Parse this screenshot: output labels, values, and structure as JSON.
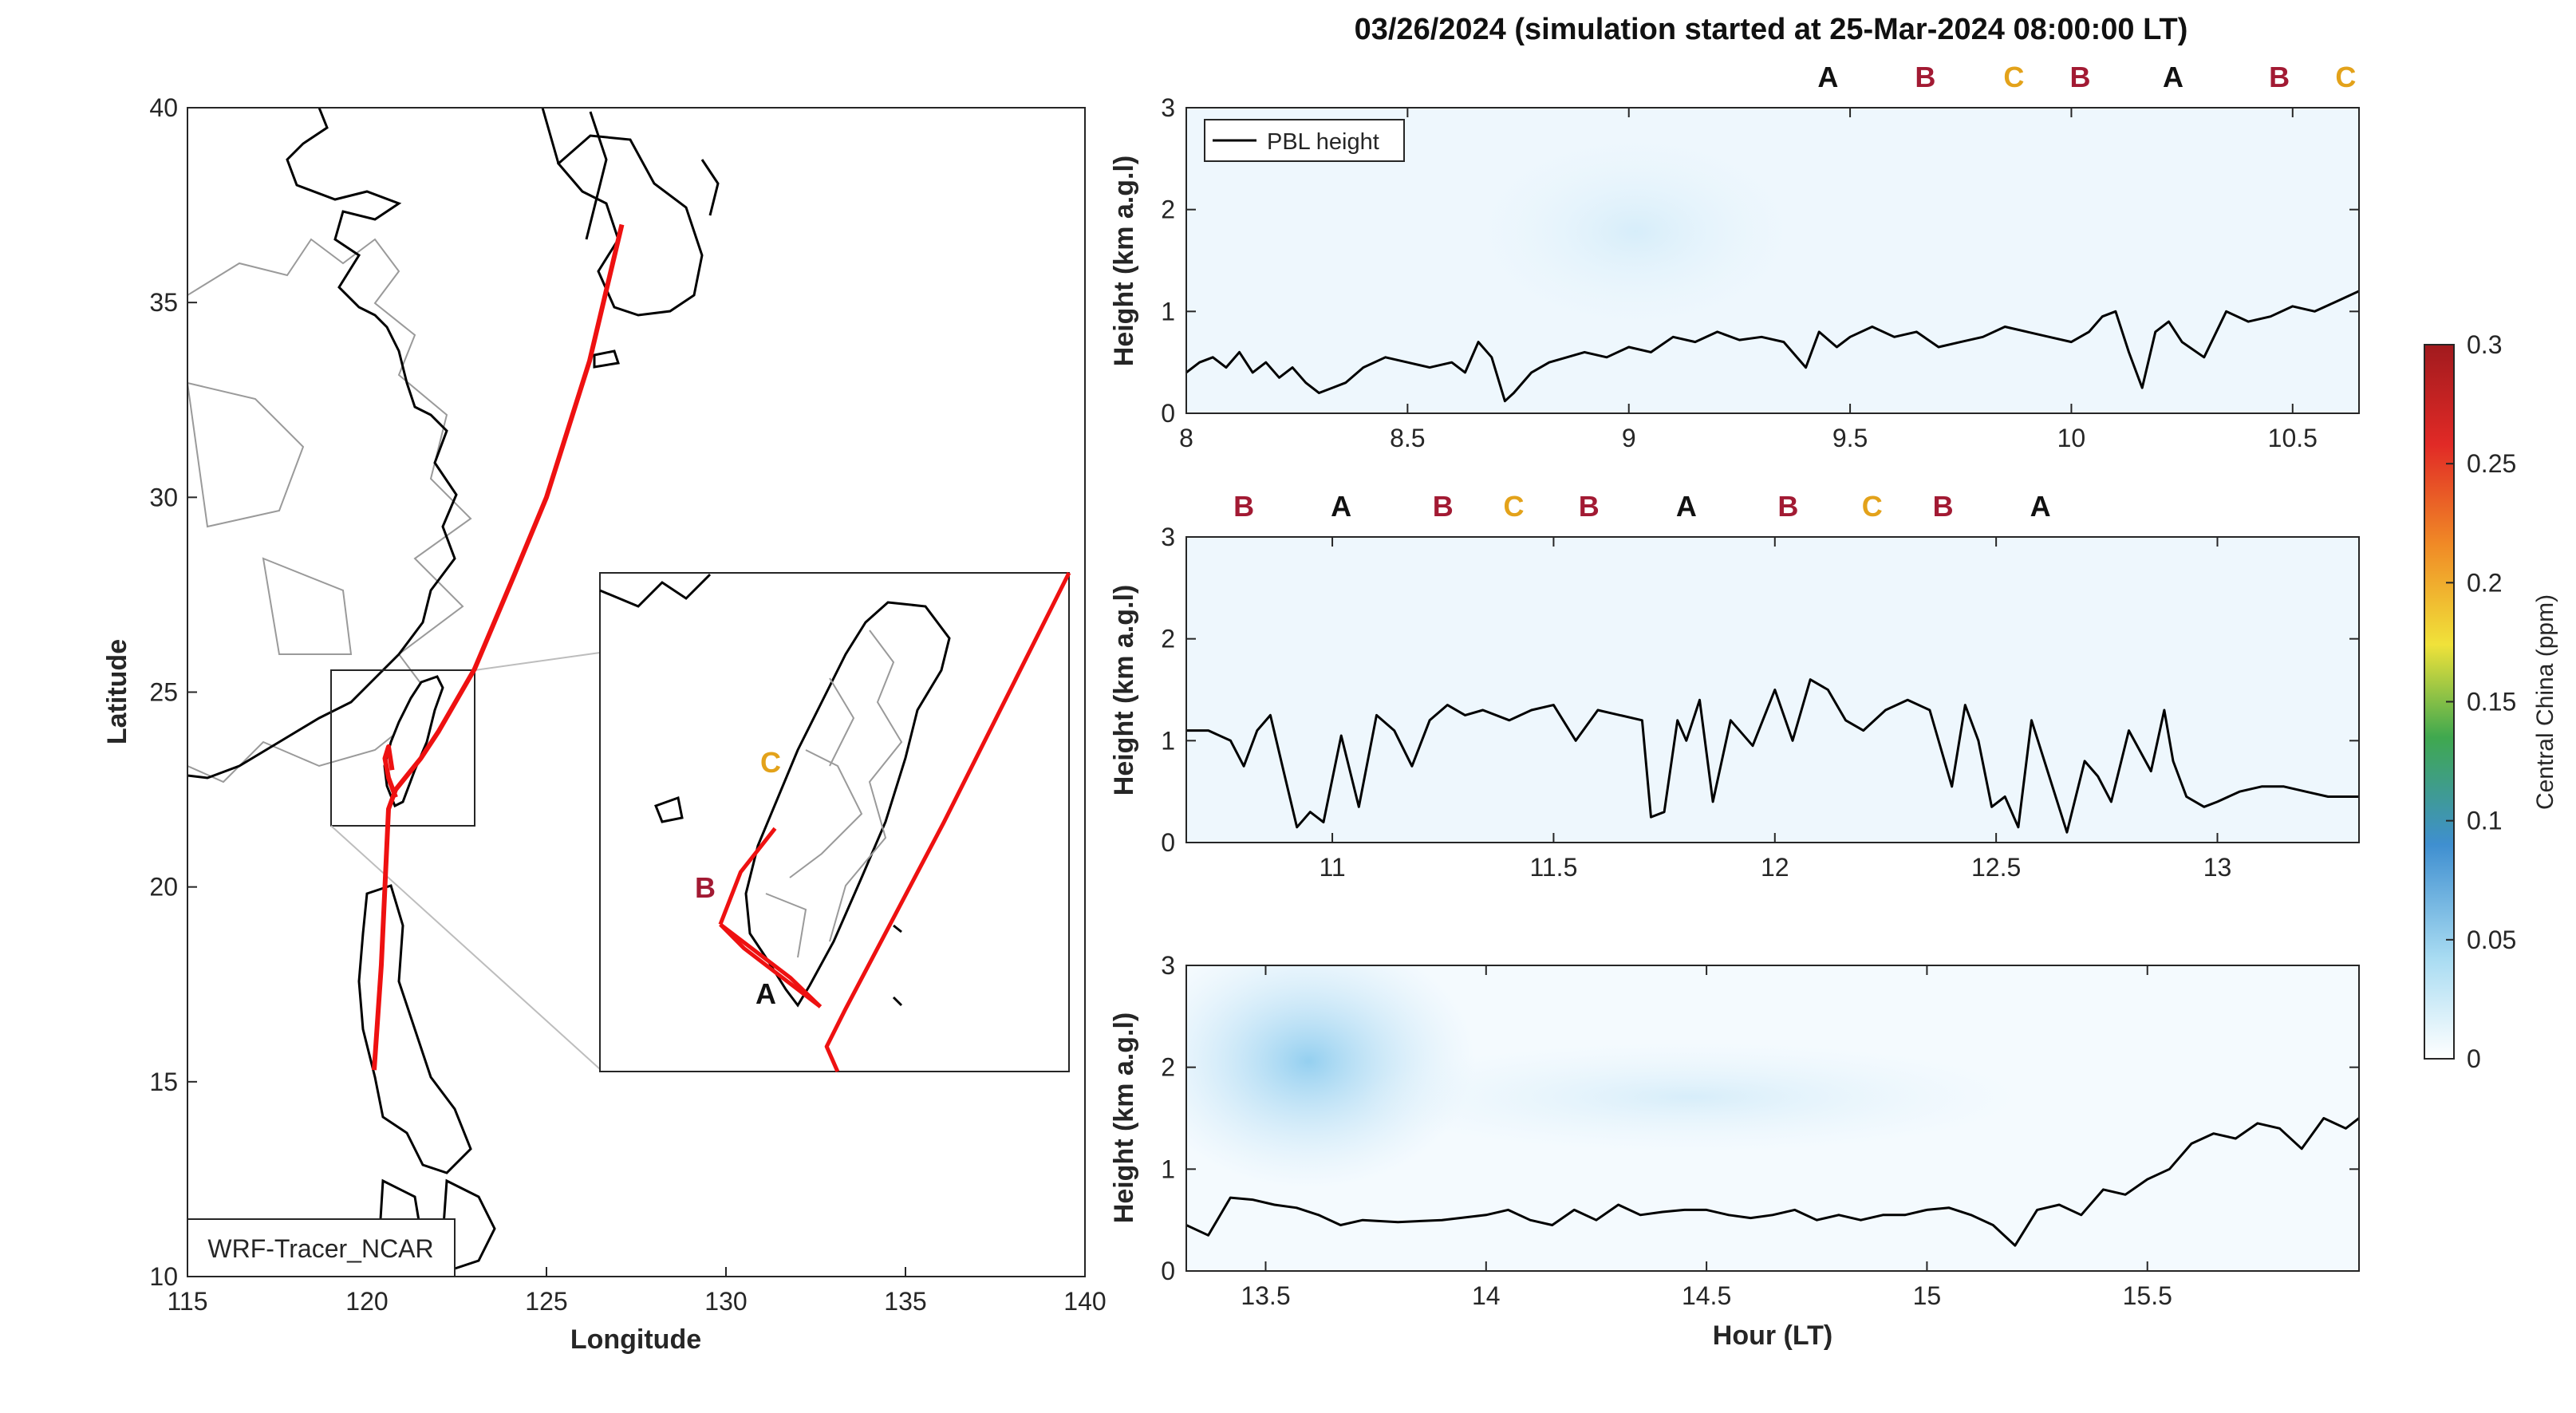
{
  "figure": {
    "title": "03/26/2024 (simulation started at 25-Mar-2024 08:00:00 LT)",
    "colors": {
      "A": "#111111",
      "B": "#a21a33",
      "C": "#e3a21a",
      "track": "#ee1111",
      "pbl": "#000000"
    }
  },
  "chart_data": [
    {
      "type": "line",
      "name": "map",
      "xlabel": "Longitude",
      "ylabel": "Latitude",
      "xlim": [
        115,
        140
      ],
      "ylim": [
        10,
        40
      ],
      "xticks": [
        "115",
        "120",
        "125",
        "130",
        "135",
        "140"
      ],
      "yticks": [
        "10",
        "15",
        "20",
        "25",
        "30",
        "35",
        "40"
      ],
      "annotation": "WRF-Tracer_NCAR",
      "track": {
        "lon": [
          127.1,
          126.2,
          125.0,
          124.1,
          123.0,
          122.0,
          121.5,
          120.8,
          120.6,
          120.4,
          120.2
        ],
        "lat": [
          37.0,
          33.5,
          30.0,
          28.0,
          25.6,
          24.0,
          23.3,
          22.5,
          22.0,
          18.0,
          15.3
        ]
      },
      "track_branch": {
        "lon": [
          120.8,
          120.6,
          120.5,
          120.6,
          120.7
        ],
        "lat": [
          22.3,
          22.8,
          23.3,
          23.6,
          23.0
        ]
      },
      "inset": {
        "lon_range": [
          119.3,
          122.3
        ],
        "lat_range": [
          21.5,
          25.5
        ],
        "markers": [
          "A",
          "B",
          "C"
        ],
        "track": {
          "lon": [
            122.3,
            121.5,
            120.87,
            120.75,
            120.82
          ],
          "lat": [
            25.5,
            23.5,
            22.0,
            21.7,
            21.5
          ]
        },
        "branches": [
          {
            "lon": [
              120.71,
              120.22,
              120.07
            ],
            "lat": [
              22.02,
              22.49,
              22.68
            ]
          },
          {
            "lon": [
              120.71,
              120.52,
              120.07
            ],
            "lat": [
              22.02,
              22.25,
              22.68
            ]
          },
          {
            "lon": [
              120.07,
              120.2,
              120.42
            ],
            "lat": [
              22.68,
              23.1,
              23.45
            ]
          }
        ]
      }
    },
    {
      "type": "line",
      "name": "panel-1",
      "ylabel": "Height (km a.g.l)",
      "xlim": [
        8,
        10.65
      ],
      "ylim": [
        0,
        3
      ],
      "xticks": [
        "8",
        "8.5",
        "9",
        "9.5",
        "10",
        "10.5"
      ],
      "yticks": [
        "0",
        "1",
        "2",
        "3"
      ],
      "legend": {
        "label": "PBL height",
        "placement": "top-left"
      },
      "markers": [
        {
          "label": "A",
          "x": 9.45
        },
        {
          "label": "B",
          "x": 9.67
        },
        {
          "label": "C",
          "x": 9.87
        },
        {
          "label": "B",
          "x": 10.02
        },
        {
          "label": "A",
          "x": 10.23
        },
        {
          "label": "B",
          "x": 10.47
        },
        {
          "label": "C",
          "x": 10.62
        }
      ],
      "series": [
        {
          "x": [
            8.0,
            8.03,
            8.06,
            8.09,
            8.12,
            8.15,
            8.18,
            8.21,
            8.24,
            8.27,
            8.3,
            8.33,
            8.36,
            8.4,
            8.45,
            8.5,
            8.55,
            8.6,
            8.63,
            8.66,
            8.69,
            8.72,
            8.74,
            8.78,
            8.82,
            8.86,
            8.9,
            8.95,
            9.0,
            9.05,
            9.1,
            9.15,
            9.2,
            9.25,
            9.3,
            9.35,
            9.4,
            9.43,
            9.47,
            9.5,
            9.55,
            9.6,
            9.65,
            9.7,
            9.75,
            9.8,
            9.85,
            9.9,
            9.95,
            10.0,
            10.04,
            10.07,
            10.1,
            10.13,
            10.16,
            10.19,
            10.22,
            10.25,
            10.3,
            10.35,
            10.4,
            10.45,
            10.5,
            10.55,
            10.6,
            10.65
          ],
          "y": [
            0.4,
            0.5,
            0.55,
            0.45,
            0.6,
            0.4,
            0.5,
            0.35,
            0.45,
            0.3,
            0.2,
            0.25,
            0.3,
            0.45,
            0.55,
            0.5,
            0.45,
            0.5,
            0.4,
            0.7,
            0.55,
            0.12,
            0.2,
            0.4,
            0.5,
            0.55,
            0.6,
            0.55,
            0.65,
            0.6,
            0.75,
            0.7,
            0.8,
            0.72,
            0.75,
            0.7,
            0.45,
            0.8,
            0.65,
            0.75,
            0.85,
            0.75,
            0.8,
            0.65,
            0.7,
            0.75,
            0.85,
            0.8,
            0.75,
            0.7,
            0.8,
            0.95,
            1.0,
            0.6,
            0.25,
            0.8,
            0.9,
            0.7,
            0.55,
            1.0,
            0.9,
            0.95,
            1.05,
            1.0,
            1.1,
            1.2
          ],
          "color": "#000000"
        }
      ]
    },
    {
      "type": "line",
      "name": "panel-2",
      "ylabel": "Height (km a.g.l)",
      "xlim": [
        10.67,
        13.32
      ],
      "ylim": [
        0,
        3
      ],
      "xticks": [
        "11",
        "11.5",
        "12",
        "12.5",
        "13"
      ],
      "yticks": [
        "0",
        "1",
        "2",
        "3"
      ],
      "markers": [
        {
          "label": "B",
          "x": 10.8
        },
        {
          "label": "A",
          "x": 11.02
        },
        {
          "label": "B",
          "x": 11.25
        },
        {
          "label": "C",
          "x": 11.41
        },
        {
          "label": "B",
          "x": 11.58
        },
        {
          "label": "A",
          "x": 11.8
        },
        {
          "label": "B",
          "x": 12.03
        },
        {
          "label": "C",
          "x": 12.22
        },
        {
          "label": "B",
          "x": 12.38
        },
        {
          "label": "A",
          "x": 12.6
        }
      ],
      "series": [
        {
          "x": [
            10.67,
            10.72,
            10.77,
            10.8,
            10.83,
            10.86,
            10.89,
            10.92,
            10.95,
            10.98,
            11.02,
            11.06,
            11.1,
            11.14,
            11.18,
            11.22,
            11.26,
            11.3,
            11.34,
            11.4,
            11.45,
            11.5,
            11.55,
            11.6,
            11.65,
            11.7,
            11.72,
            11.75,
            11.78,
            11.8,
            11.83,
            11.86,
            11.9,
            11.95,
            12.0,
            12.04,
            12.08,
            12.12,
            12.16,
            12.2,
            12.25,
            12.3,
            12.35,
            12.4,
            12.43,
            12.46,
            12.49,
            12.52,
            12.55,
            12.58,
            12.62,
            12.66,
            12.7,
            12.73,
            12.76,
            12.8,
            12.85,
            12.88,
            12.9,
            12.93,
            12.97,
            13.0,
            13.05,
            13.1,
            13.15,
            13.2,
            13.25,
            13.32
          ],
          "y": [
            1.1,
            1.1,
            1.0,
            0.75,
            1.1,
            1.25,
            0.7,
            0.15,
            0.3,
            0.2,
            1.05,
            0.35,
            1.25,
            1.1,
            0.75,
            1.2,
            1.35,
            1.25,
            1.3,
            1.2,
            1.3,
            1.35,
            1.0,
            1.3,
            1.25,
            1.2,
            0.25,
            0.3,
            1.2,
            1.0,
            1.4,
            0.4,
            1.2,
            0.95,
            1.5,
            1.0,
            1.6,
            1.5,
            1.2,
            1.1,
            1.3,
            1.4,
            1.3,
            0.55,
            1.35,
            1.0,
            0.35,
            0.45,
            0.15,
            1.2,
            0.65,
            0.1,
            0.8,
            0.65,
            0.4,
            1.1,
            0.7,
            1.3,
            0.8,
            0.45,
            0.35,
            0.4,
            0.5,
            0.55,
            0.55,
            0.5,
            0.45,
            0.45
          ],
          "color": "#000000"
        }
      ]
    },
    {
      "type": "line",
      "name": "panel-3",
      "xlabel": "Hour (LT)",
      "ylabel": "Height (km a.g.l)",
      "xlim": [
        13.32,
        15.98
      ],
      "ylim": [
        0,
        3
      ],
      "xticks": [
        "13.5",
        "14",
        "14.5",
        "15",
        "15.5"
      ],
      "yticks": [
        "0",
        "1",
        "2",
        "3"
      ],
      "series": [
        {
          "x": [
            13.32,
            13.37,
            13.42,
            13.47,
            13.52,
            13.57,
            13.62,
            13.67,
            13.72,
            13.8,
            13.9,
            14.0,
            14.05,
            14.1,
            14.15,
            14.2,
            14.25,
            14.3,
            14.35,
            14.4,
            14.45,
            14.5,
            14.55,
            14.6,
            14.65,
            14.7,
            14.75,
            14.8,
            14.85,
            14.9,
            14.95,
            15.0,
            15.05,
            15.1,
            15.15,
            15.2,
            15.25,
            15.3,
            15.35,
            15.4,
            15.45,
            15.5,
            15.55,
            15.6,
            15.65,
            15.7,
            15.75,
            15.8,
            15.85,
            15.9,
            15.95,
            15.98
          ],
          "y": [
            0.45,
            0.35,
            0.72,
            0.7,
            0.65,
            0.62,
            0.55,
            0.45,
            0.5,
            0.48,
            0.5,
            0.55,
            0.6,
            0.5,
            0.45,
            0.6,
            0.5,
            0.65,
            0.55,
            0.58,
            0.6,
            0.6,
            0.55,
            0.52,
            0.55,
            0.6,
            0.5,
            0.55,
            0.5,
            0.55,
            0.55,
            0.6,
            0.62,
            0.55,
            0.45,
            0.25,
            0.6,
            0.65,
            0.55,
            0.8,
            0.75,
            0.9,
            1.0,
            1.25,
            1.35,
            1.3,
            1.45,
            1.4,
            1.2,
            1.5,
            1.4,
            1.5
          ],
          "color": "#000000"
        }
      ]
    },
    {
      "type": "heatmap",
      "name": "colorbar",
      "label": "Central China (ppm)",
      "range": [
        0,
        0.3
      ],
      "ticks": [
        "0",
        "0.05",
        "0.1",
        "0.15",
        "0.2",
        "0.25",
        "0.3"
      ],
      "colors": [
        "#ffffff",
        "#a9dcf2",
        "#3f8fd0",
        "#3fa84f",
        "#f0e23a",
        "#f08a26",
        "#e12a26",
        "#a11a1e"
      ]
    }
  ]
}
